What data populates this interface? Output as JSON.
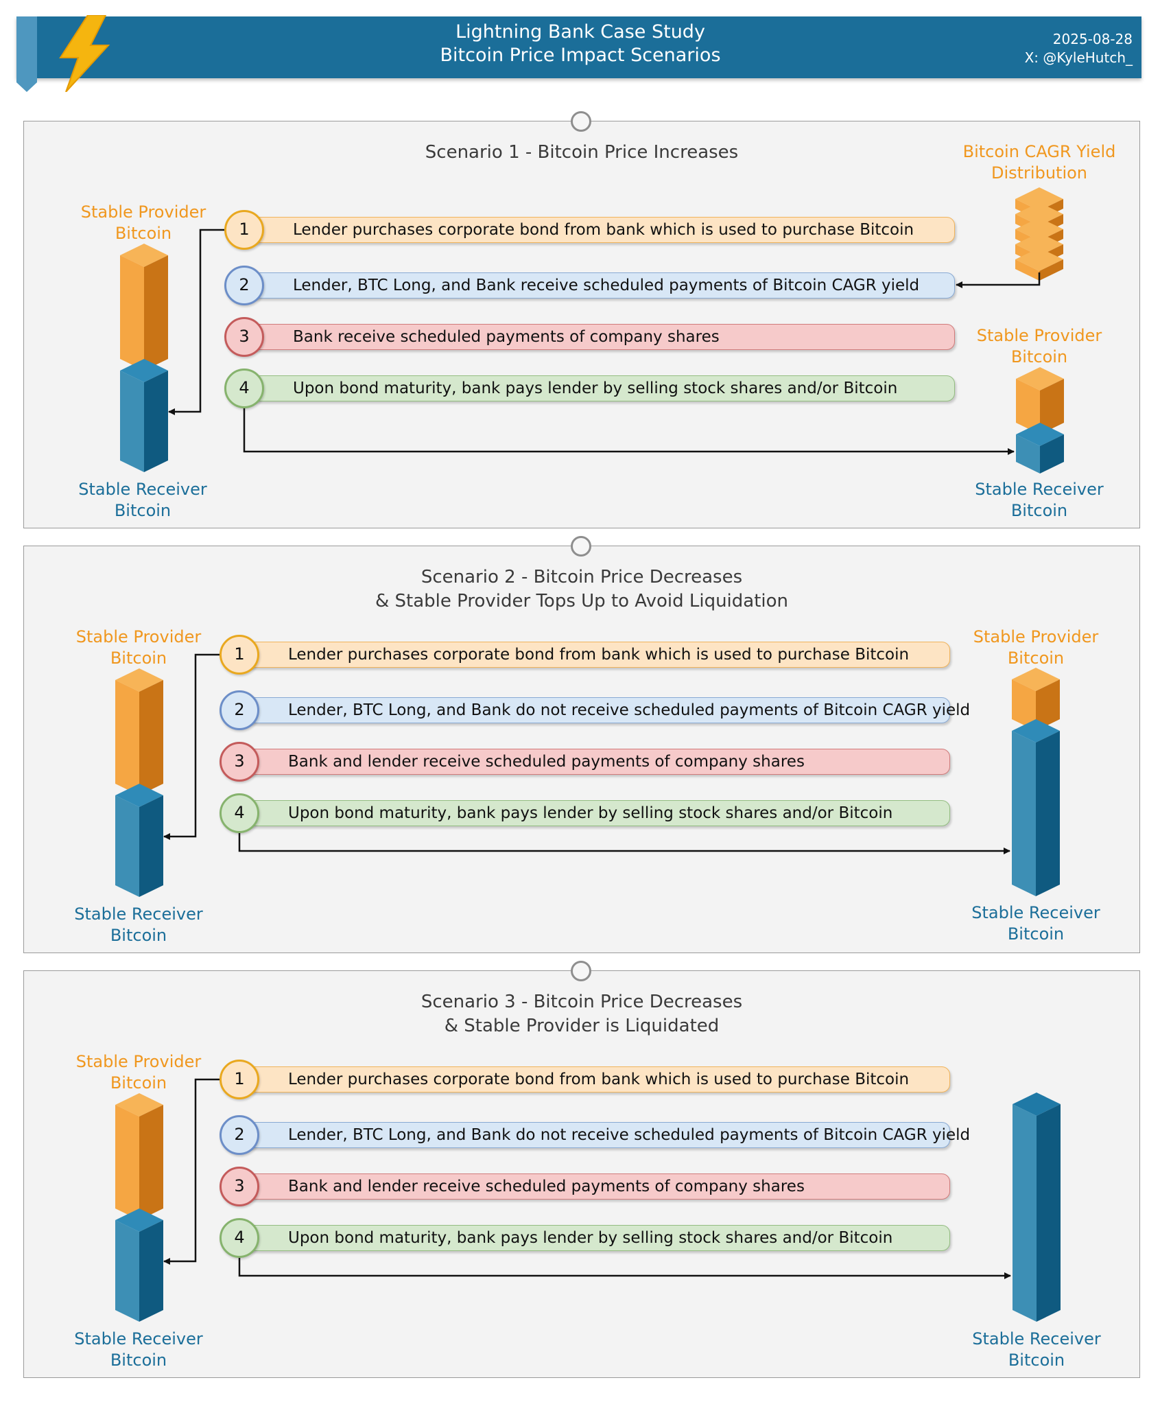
{
  "header": {
    "title_line1": "Lightning Bank Case Study",
    "title_line2": "Bitcoin Price Impact Scenarios",
    "date": "2025-08-28",
    "author": "X: @KyleHutch_",
    "logo_icon": "lightning-bolt-icon"
  },
  "labels": {
    "stable_provider_line1": "Stable Provider",
    "stable_provider_line2": "Bitcoin",
    "stable_receiver_line1": "Stable Receiver",
    "stable_receiver_line2": "Bitcoin",
    "cagr_line1": "Bitcoin CAGR Yield",
    "cagr_line2": "Distribution"
  },
  "colors": {
    "header": "#1b6e99",
    "orange": "#f0971e",
    "blue": "#1b6e99"
  },
  "scenarios": [
    {
      "title_line1": "Scenario 1 - Bitcoin Price Increases",
      "title_line2": "",
      "steps": [
        {
          "num": "1",
          "text": "Lender purchases corporate bond from bank which is used to purchase Bitcoin"
        },
        {
          "num": "2",
          "text": "Lender, BTC Long, and Bank receive scheduled payments of Bitcoin CAGR yield"
        },
        {
          "num": "3",
          "text": "Bank receive scheduled payments of company shares"
        },
        {
          "num": "4",
          "text": "Upon bond maturity, bank pays lender by selling stock shares and/or Bitcoin"
        }
      ]
    },
    {
      "title_line1": "Scenario 2 - Bitcoin Price Decreases",
      "title_line2": "& Stable Provider Tops Up to Avoid Liquidation",
      "steps": [
        {
          "num": "1",
          "text": "Lender purchases corporate bond from bank which is used to purchase Bitcoin"
        },
        {
          "num": "2",
          "text": "Lender, BTC Long, and Bank do not receive scheduled payments of Bitcoin CAGR yield"
        },
        {
          "num": "3",
          "text": "Bank and lender receive scheduled payments of company shares"
        },
        {
          "num": "4",
          "text": "Upon bond maturity, bank pays lender by selling stock shares and/or Bitcoin"
        }
      ]
    },
    {
      "title_line1": "Scenario 3 - Bitcoin Price Decreases",
      "title_line2": "& Stable Provider is Liquidated",
      "steps": [
        {
          "num": "1",
          "text": "Lender purchases corporate bond from bank which is used to purchase Bitcoin"
        },
        {
          "num": "2",
          "text": "Lender, BTC Long, and Bank do not receive scheduled payments of Bitcoin CAGR yield"
        },
        {
          "num": "3",
          "text": "Bank and lender receive scheduled payments of company shares"
        },
        {
          "num": "4",
          "text": "Upon bond maturity, bank pays lender by selling stock shares and/or Bitcoin"
        }
      ]
    }
  ]
}
